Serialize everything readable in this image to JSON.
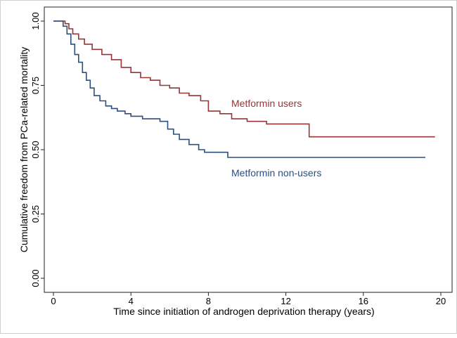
{
  "chart_data": {
    "type": "line",
    "title": "",
    "xlabel": "Time since initiation of androgen deprivation therapy (years)",
    "ylabel": "Cumulative freedom from PCa-related mortality",
    "xlim": [
      0,
      20
    ],
    "ylim": [
      0,
      1
    ],
    "xticks": [
      0,
      4,
      8,
      12,
      16,
      20
    ],
    "yticks": [
      0,
      0.25,
      0.5,
      0.75,
      1
    ],
    "xtick_labels": [
      "0",
      "4",
      "8",
      "12",
      "16",
      "20"
    ],
    "ytick_labels": [
      "0.00",
      "0.25",
      "0.50",
      "0.75",
      "1.00"
    ],
    "grid": false,
    "legend": "inline labels",
    "series": [
      {
        "name": "Metformin users",
        "color": "#953537",
        "step": true,
        "x": [
          0,
          0.6,
          0.8,
          1.0,
          1.3,
          1.6,
          2.0,
          2.5,
          3.0,
          3.5,
          4.0,
          4.5,
          5.0,
          5.5,
          6.0,
          6.5,
          7.0,
          7.6,
          8.0,
          8.6,
          9.2,
          10.0,
          11.0,
          13.2,
          19.7
        ],
        "y": [
          1.0,
          0.99,
          0.97,
          0.95,
          0.93,
          0.91,
          0.89,
          0.87,
          0.85,
          0.82,
          0.8,
          0.78,
          0.77,
          0.75,
          0.74,
          0.72,
          0.71,
          0.69,
          0.65,
          0.64,
          0.62,
          0.61,
          0.6,
          0.55,
          0.55
        ]
      },
      {
        "name": "Metformin non-users",
        "color": "#2d4f7c",
        "step": true,
        "x": [
          0,
          0.5,
          0.7,
          0.9,
          1.1,
          1.3,
          1.5,
          1.7,
          1.9,
          2.1,
          2.4,
          2.7,
          3.0,
          3.3,
          3.7,
          4.0,
          4.6,
          5.5,
          5.9,
          6.2,
          6.5,
          7.0,
          7.5,
          7.8,
          8.1,
          9.0,
          11.0,
          19.2
        ],
        "y": [
          1.0,
          0.98,
          0.95,
          0.91,
          0.87,
          0.84,
          0.8,
          0.77,
          0.74,
          0.71,
          0.69,
          0.67,
          0.66,
          0.65,
          0.64,
          0.63,
          0.62,
          0.61,
          0.58,
          0.56,
          0.54,
          0.52,
          0.5,
          0.49,
          0.49,
          0.47,
          0.47,
          0.47
        ]
      }
    ]
  }
}
